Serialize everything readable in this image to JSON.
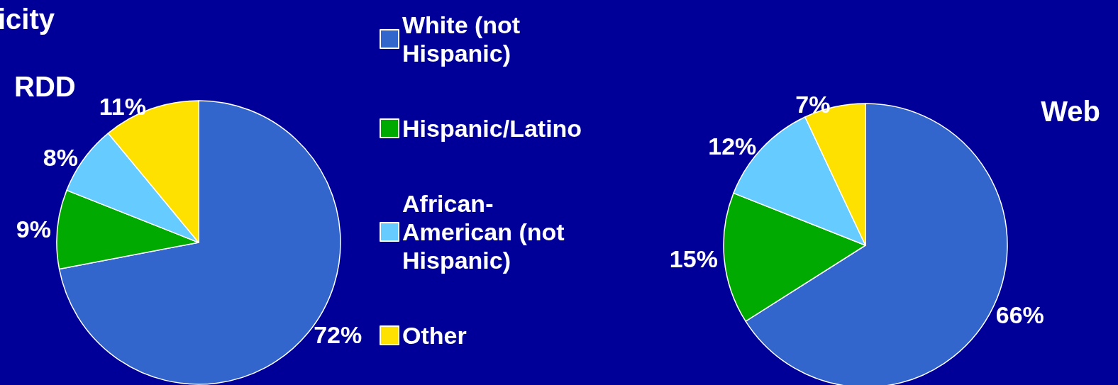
{
  "chart_data": [
    {
      "type": "pie",
      "title": "icity",
      "subtitle": "RDD",
      "categories": [
        "White (not Hispanic)",
        "Hispanic/Latino",
        "African-American (not Hispanic)",
        "Other"
      ],
      "values": [
        72,
        9,
        8,
        11
      ],
      "colors": [
        "#3366cc",
        "#00aa00",
        "#66ccff",
        "#ffe100"
      ],
      "value_labels": [
        "72%",
        "9%",
        "8%",
        "11%"
      ],
      "legend": "right"
    },
    {
      "type": "pie",
      "title": "Web",
      "categories": [
        null,
        null,
        null,
        null
      ],
      "values": [
        66,
        15,
        12,
        7
      ],
      "colors": [
        "#3366cc",
        "#00aa00",
        "#66ccff",
        "#ffe100"
      ],
      "value_labels": [
        "66%",
        "15%",
        "12%",
        "7%"
      ]
    }
  ]
}
